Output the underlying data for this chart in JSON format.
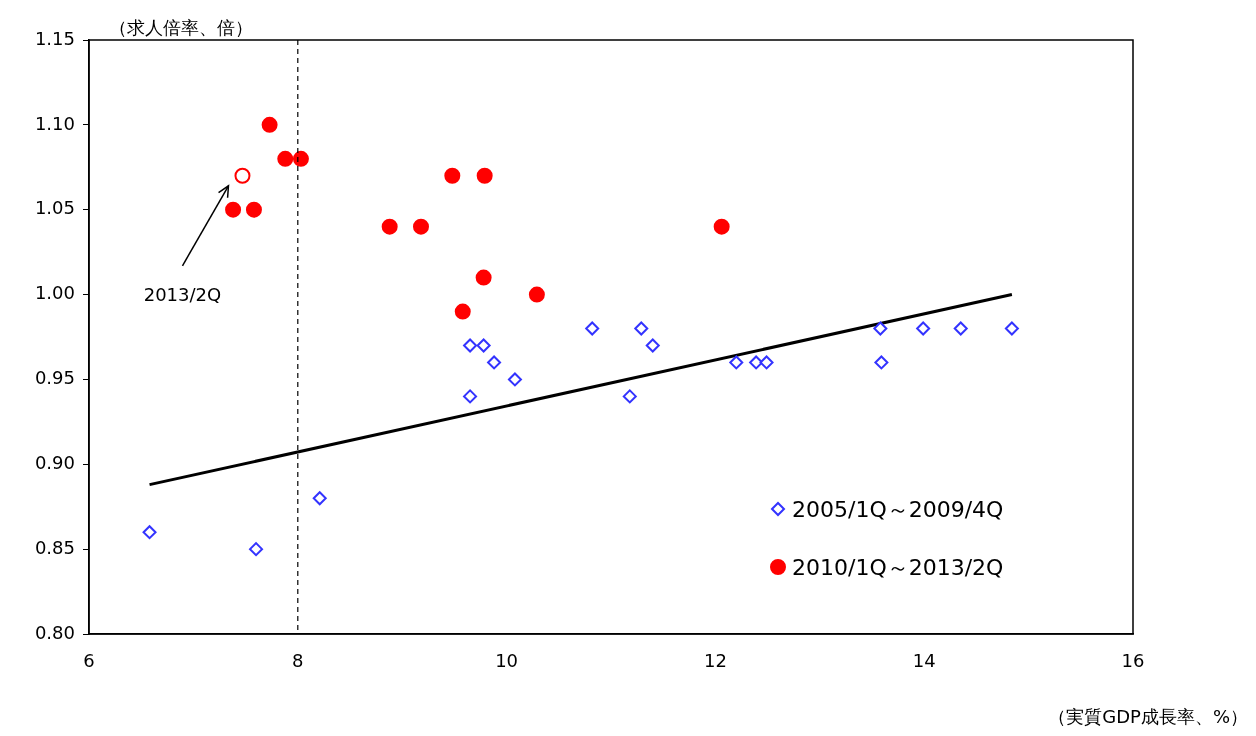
{
  "chart_data": {
    "type": "scatter",
    "xlabel": "（実質GDP成長率、%）",
    "ylabel": "（求人倍率、倍）",
    "xlim": [
      6,
      16
    ],
    "xticks": [
      6,
      8,
      10,
      12,
      14,
      16
    ],
    "ylim": [
      0.8,
      1.15
    ],
    "yticks": [
      {
        "value": 0.8,
        "label": "0.80"
      },
      {
        "value": 0.85,
        "label": "0.85"
      },
      {
        "value": 0.9,
        "label": "0.90"
      },
      {
        "value": 0.95,
        "label": "0.95"
      },
      {
        "value": 1.0,
        "label": "1.00"
      },
      {
        "value": 1.05,
        "label": "1.05"
      },
      {
        "value": 1.1,
        "label": "1.10"
      },
      {
        "value": 1.15,
        "label": "1.15"
      }
    ],
    "grid": false,
    "legend": "bottom right",
    "series": [
      {
        "name": "2005/1Q～2009/4Q",
        "color": "#3333ff",
        "marker": "diamond",
        "x": [
          6.58,
          7.6,
          8.21,
          9.65,
          9.65,
          9.78,
          9.88,
          10.08,
          10.82,
          11.18,
          11.29,
          11.4,
          12.2,
          12.39,
          12.49,
          13.58,
          13.59,
          13.99,
          14.35,
          14.84
        ],
        "values": [
          0.86,
          0.85,
          0.88,
          0.97,
          0.94,
          0.97,
          0.96,
          0.95,
          0.98,
          0.94,
          0.98,
          0.97,
          0.96,
          0.96,
          0.96,
          0.98,
          0.96,
          0.98,
          0.98,
          0.98
        ]
      },
      {
        "name": "2010/1Q～2013/2Q",
        "color": "#ff0000",
        "marker": "circle",
        "x": [
          7.38,
          7.58,
          7.73,
          7.88,
          8.03,
          8.88,
          9.18,
          9.48,
          9.79,
          9.58,
          9.78,
          10.29,
          12.06
        ],
        "values": [
          1.05,
          1.05,
          1.1,
          1.08,
          1.08,
          1.04,
          1.04,
          1.07,
          1.07,
          0.99,
          1.01,
          1.0,
          1.04
        ]
      },
      {
        "type": "scatter",
        "color": "#ff0000",
        "marker": "circle",
        "x": [
          7.47
        ],
        "values": [
          1.07
        ]
      },
      {
        "type": "line",
        "color": "#000000",
        "marker": "none",
        "x": [
          6.58,
          14.84
        ],
        "values": [
          0.888,
          1.0
        ]
      }
    ],
    "ref_lines": [
      {
        "axis": "x",
        "value": 8,
        "color": "#000000",
        "line_style": "dashed"
      }
    ],
    "annotations": [
      "2013/2Q"
    ]
  }
}
